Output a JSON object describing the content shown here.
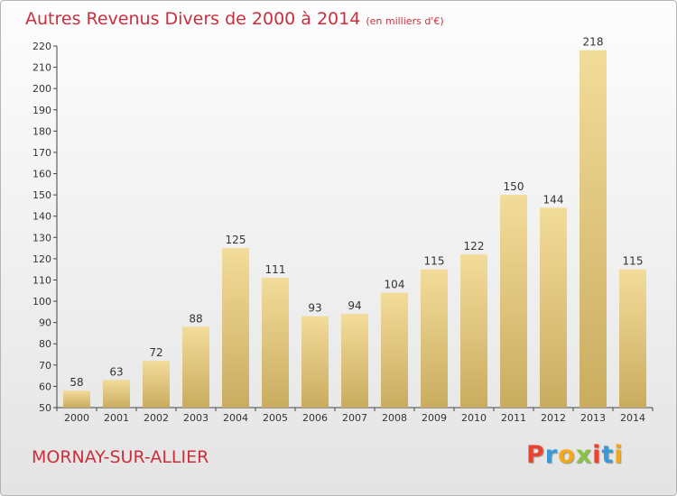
{
  "header": {
    "title": "Autres Revenus Divers de 2000 à 2014",
    "unit": "(en milliers d'€)"
  },
  "footer": {
    "place": "MORNAY-SUR-ALLIER",
    "logo": [
      "P",
      "r",
      "o",
      "x",
      "i",
      "t",
      "i"
    ],
    "logo_colors": [
      "#e8432f",
      "#3a9ad9",
      "#f1a81c",
      "#88c540",
      "#e8432f",
      "#3a9ad9",
      "#f1a81c"
    ]
  },
  "colors": {
    "title": "#cc2e3c",
    "bar_top": "#f3dc9a",
    "bar_bottom": "#c9ac5f"
  },
  "chart_data": {
    "type": "bar",
    "categories": [
      "2000",
      "2001",
      "2002",
      "2003",
      "2004",
      "2005",
      "2006",
      "2007",
      "2008",
      "2009",
      "2010",
      "2011",
      "2012",
      "2013",
      "2014"
    ],
    "values": [
      58,
      63,
      72,
      88,
      125,
      111,
      93,
      94,
      104,
      115,
      122,
      150,
      144,
      218,
      115
    ],
    "title": "Autres Revenus Divers de 2000 à 2014",
    "subtitle": "(en milliers d'€)",
    "xlabel": "",
    "ylabel": "",
    "ylim": [
      50,
      220
    ],
    "yticks": [
      50,
      60,
      70,
      80,
      90,
      100,
      110,
      120,
      130,
      140,
      150,
      160,
      170,
      180,
      190,
      200,
      210,
      220
    ],
    "grid": false,
    "legend": "none",
    "data_labels": true
  }
}
